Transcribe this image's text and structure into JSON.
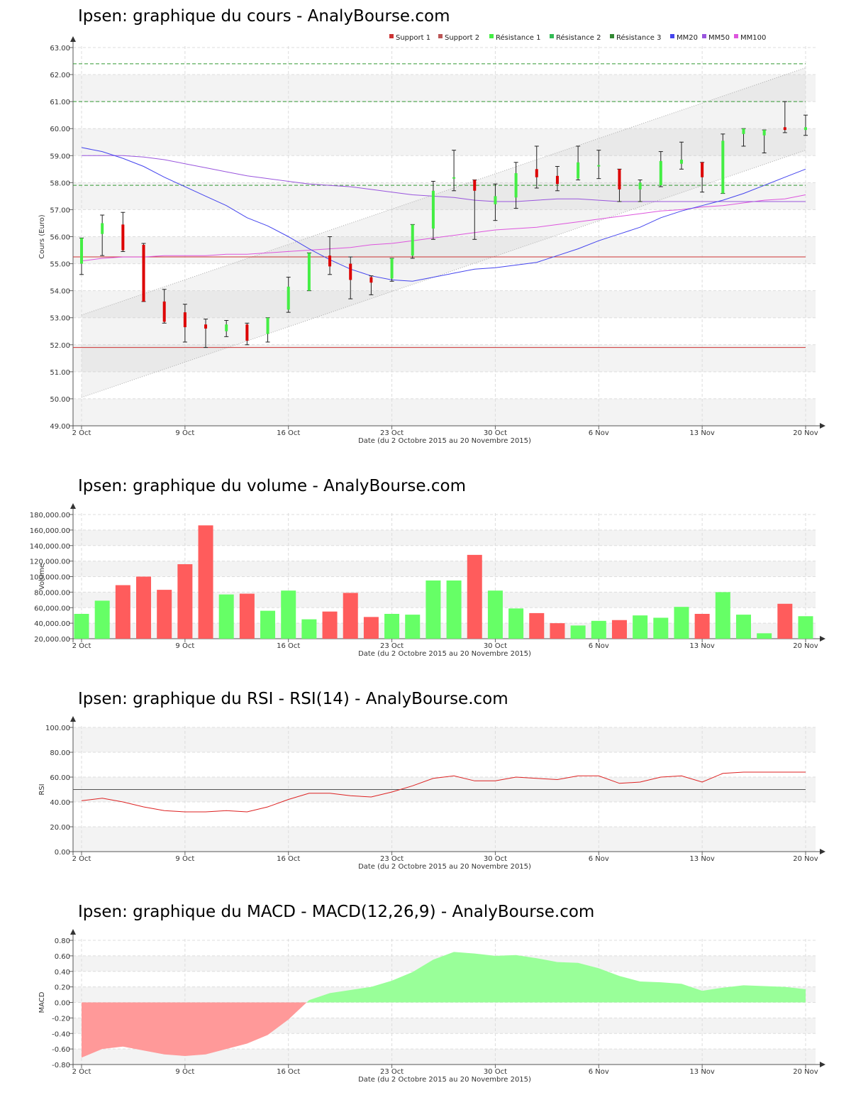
{
  "price": {
    "title": "Ipsen: graphique du cours - AnalyBourse.com",
    "ylabel": "Cours (Euro)",
    "xlabel": "Date (du 2 Octobre 2015 au 20 Novembre 2015)"
  },
  "volume": {
    "title": "Ipsen: graphique du volume - AnalyBourse.com",
    "ylabel": "Volume",
    "xlabel": "Date (du 2 Octobre 2015 au 20 Novembre 2015)"
  },
  "rsi": {
    "title": "Ipsen: graphique du RSI - RSI(14) - AnalyBourse.com",
    "ylabel": "RSI",
    "xlabel": "Date (du 2 Octobre 2015 au 20 Novembre 2015)"
  },
  "macd": {
    "title": "Ipsen: graphique du MACD - MACD(12,26,9) - AnalyBourse.com",
    "ylabel": "MACD",
    "xlabel": "Date (du 2 Octobre 2015 au 20 Novembre 2015)"
  },
  "colors": {
    "up": "#44ee44",
    "down": "#dd0000",
    "vol_up": "#66ff66",
    "vol_down": "#ff5c5c",
    "macd_pos": "#99ff99",
    "macd_neg": "#ff9999",
    "support": "#cc3333",
    "resistance": "#339933",
    "mm20": "#4444ee",
    "mm50": "#9955dd",
    "mm100": "#dd55dd",
    "rsi": "#dd2222"
  },
  "chart_data": [
    {
      "id": "price",
      "type": "candlestick",
      "title": "Ipsen: graphique du cours - AnalyBourse.com",
      "ylabel": "Cours (Euro)",
      "xlabel": "Date (du 2 Octobre 2015 au 20 Novembre 2015)",
      "ylim": [
        49,
        63
      ],
      "yticks": [
        "49.00",
        "50.00",
        "51.00",
        "52.00",
        "53.00",
        "54.00",
        "55.00",
        "56.00",
        "57.00",
        "58.00",
        "59.00",
        "60.00",
        "61.00",
        "62.00",
        "63.00"
      ],
      "xticks": [
        {
          "label": "2 Oct",
          "i": 0
        },
        {
          "label": "9 Oct",
          "i": 5
        },
        {
          "label": "16 Oct",
          "i": 10
        },
        {
          "label": "23 Oct",
          "i": 15
        },
        {
          "label": "30 Oct",
          "i": 20
        },
        {
          "label": "6 Nov",
          "i": 25
        },
        {
          "label": "13 Nov",
          "i": 30
        },
        {
          "label": "20 Nov",
          "i": 35
        }
      ],
      "legend": [
        "Support 1",
        "Support 2",
        "Résistance 1",
        "Résistance 2",
        "Résistance 3",
        "MM20",
        "MM50",
        "MM100"
      ],
      "candles": [
        {
          "o": 55.0,
          "h": 55.95,
          "l": 54.6,
          "c": 55.95
        },
        {
          "o": 56.1,
          "h": 56.8,
          "l": 55.3,
          "c": 56.5
        },
        {
          "o": 56.45,
          "h": 56.9,
          "l": 55.45,
          "c": 55.5
        },
        {
          "o": 55.7,
          "h": 55.75,
          "l": 53.6,
          "c": 53.6
        },
        {
          "o": 53.6,
          "h": 54.05,
          "l": 52.8,
          "c": 52.85
        },
        {
          "o": 53.2,
          "h": 53.5,
          "l": 52.1,
          "c": 52.65
        },
        {
          "o": 52.75,
          "h": 52.95,
          "l": 51.9,
          "c": 52.6
        },
        {
          "o": 52.5,
          "h": 52.9,
          "l": 52.3,
          "c": 52.75
        },
        {
          "o": 52.75,
          "h": 52.8,
          "l": 52.0,
          "c": 52.15
        },
        {
          "o": 52.4,
          "h": 53.0,
          "l": 52.1,
          "c": 53.0
        },
        {
          "o": 53.3,
          "h": 54.5,
          "l": 53.2,
          "c": 54.15
        },
        {
          "o": 54.0,
          "h": 55.4,
          "l": 54.0,
          "c": 55.4
        },
        {
          "o": 55.3,
          "h": 56.0,
          "l": 54.6,
          "c": 54.9
        },
        {
          "o": 55.0,
          "h": 55.25,
          "l": 53.7,
          "c": 54.4
        },
        {
          "o": 54.5,
          "h": 54.55,
          "l": 53.85,
          "c": 54.3
        },
        {
          "o": 54.45,
          "h": 55.2,
          "l": 54.35,
          "c": 55.2
        },
        {
          "o": 55.3,
          "h": 56.45,
          "l": 55.2,
          "c": 56.45
        },
        {
          "o": 56.3,
          "h": 58.05,
          "l": 55.9,
          "c": 57.7
        },
        {
          "o": 58.2,
          "h": 59.2,
          "l": 57.7,
          "c": 58.2
        },
        {
          "o": 58.1,
          "h": 58.1,
          "l": 55.9,
          "c": 57.7
        },
        {
          "o": 57.2,
          "h": 57.95,
          "l": 56.6,
          "c": 57.5
        },
        {
          "o": 57.45,
          "h": 58.75,
          "l": 57.05,
          "c": 58.35
        },
        {
          "o": 58.5,
          "h": 59.35,
          "l": 57.8,
          "c": 58.2
        },
        {
          "o": 58.25,
          "h": 58.6,
          "l": 57.7,
          "c": 57.95
        },
        {
          "o": 58.15,
          "h": 59.35,
          "l": 58.1,
          "c": 58.75
        },
        {
          "o": 58.6,
          "h": 59.2,
          "l": 58.15,
          "c": 58.65
        },
        {
          "o": 58.5,
          "h": 58.5,
          "l": 57.3,
          "c": 57.75
        },
        {
          "o": 57.75,
          "h": 58.1,
          "l": 57.3,
          "c": 58.0
        },
        {
          "o": 57.9,
          "h": 59.15,
          "l": 57.85,
          "c": 58.8
        },
        {
          "o": 58.7,
          "h": 59.5,
          "l": 58.5,
          "c": 58.85
        },
        {
          "o": 58.75,
          "h": 58.75,
          "l": 57.65,
          "c": 58.2
        },
        {
          "o": 57.6,
          "h": 59.8,
          "l": 57.6,
          "c": 59.55
        },
        {
          "o": 59.8,
          "h": 60.0,
          "l": 59.35,
          "c": 60.0
        },
        {
          "o": 59.75,
          "h": 59.95,
          "l": 59.1,
          "c": 59.95
        },
        {
          "o": 60.05,
          "h": 61.0,
          "l": 59.85,
          "c": 59.95
        },
        {
          "o": 59.95,
          "h": 60.5,
          "l": 59.75,
          "c": 60.05
        }
      ],
      "support_lines": [
        55.25,
        51.9
      ],
      "resistance_lines": [
        57.9,
        61.0,
        62.4
      ],
      "channel_upper": [
        53.1,
        62.25
      ],
      "channel_lower": [
        50.05,
        59.2
      ],
      "mm20": [
        59.3,
        59.15,
        58.9,
        58.6,
        58.2,
        57.85,
        57.5,
        57.15,
        56.7,
        56.4,
        56.0,
        55.55,
        55.15,
        54.8,
        54.55,
        54.4,
        54.35,
        54.5,
        54.65,
        54.8,
        54.85,
        54.95,
        55.05,
        55.3,
        55.55,
        55.85,
        56.1,
        56.35,
        56.7,
        56.95,
        57.15,
        57.35,
        57.6,
        57.9,
        58.2,
        58.5
      ],
      "mm50": [
        59.0,
        59.0,
        59.0,
        58.95,
        58.85,
        58.7,
        58.55,
        58.4,
        58.25,
        58.15,
        58.05,
        57.95,
        57.9,
        57.85,
        57.75,
        57.65,
        57.55,
        57.5,
        57.45,
        57.35,
        57.3,
        57.3,
        57.35,
        57.4,
        57.4,
        57.35,
        57.3,
        57.3,
        57.3,
        57.3,
        57.3,
        57.3,
        57.3,
        57.3,
        57.3,
        57.3
      ],
      "mm100": [
        55.1,
        55.2,
        55.25,
        55.25,
        55.3,
        55.3,
        55.3,
        55.35,
        55.35,
        55.4,
        55.45,
        55.5,
        55.55,
        55.6,
        55.7,
        55.75,
        55.85,
        55.95,
        56.05,
        56.15,
        56.25,
        56.3,
        56.35,
        56.45,
        56.55,
        56.65,
        56.75,
        56.85,
        56.95,
        57.0,
        57.1,
        57.15,
        57.25,
        57.35,
        57.4,
        57.55
      ]
    },
    {
      "id": "volume",
      "type": "bar",
      "title": "Ipsen: graphique du volume - AnalyBourse.com",
      "ylabel": "Volume",
      "xlabel": "Date (du 2 Octobre 2015 au 20 Novembre 2015)",
      "ylim": [
        20000,
        180000
      ],
      "yticks": [
        "20,000.00",
        "40,000.00",
        "60,000.00",
        "80,000.00",
        "100,000.00",
        "120,000.00",
        "140,000.00",
        "160,000.00",
        "180,000.00"
      ],
      "xticks": [
        {
          "label": "2 Oct",
          "i": 0
        },
        {
          "label": "9 Oct",
          "i": 5
        },
        {
          "label": "16 Oct",
          "i": 10
        },
        {
          "label": "23 Oct",
          "i": 15
        },
        {
          "label": "30 Oct",
          "i": 20
        },
        {
          "label": "6 Nov",
          "i": 25
        },
        {
          "label": "13 Nov",
          "i": 30
        },
        {
          "label": "20 Nov",
          "i": 35
        }
      ],
      "values": [
        52000,
        69000,
        89000,
        100000,
        83000,
        116000,
        166000,
        77000,
        78000,
        56000,
        82000,
        45000,
        55000,
        79000,
        48000,
        52000,
        51000,
        95000,
        95000,
        128000,
        82000,
        59000,
        53000,
        40000,
        37000,
        43000,
        44000,
        50000,
        47000,
        61000,
        52000,
        80000,
        51000,
        27000,
        65000,
        49000
      ]
    },
    {
      "id": "rsi",
      "type": "line",
      "title": "Ipsen: graphique du RSI - RSI(14) - AnalyBourse.com",
      "ylabel": "RSI",
      "xlabel": "Date (du 2 Octobre 2015 au 20 Novembre 2015)",
      "ylim": [
        0,
        100
      ],
      "yticks": [
        "0.00",
        "20.00",
        "40.00",
        "60.00",
        "80.00",
        "100.00"
      ],
      "xticks": [
        {
          "label": "2 Oct",
          "i": 0
        },
        {
          "label": "9 Oct",
          "i": 5
        },
        {
          "label": "16 Oct",
          "i": 10
        },
        {
          "label": "23 Oct",
          "i": 15
        },
        {
          "label": "30 Oct",
          "i": 20
        },
        {
          "label": "6 Nov",
          "i": 25
        },
        {
          "label": "13 Nov",
          "i": 30
        },
        {
          "label": "20 Nov",
          "i": 35
        }
      ],
      "reference": 50,
      "values": [
        41,
        43,
        40,
        36,
        33,
        32,
        32,
        33,
        32,
        36,
        42,
        47,
        47,
        45,
        44,
        48,
        53,
        59,
        61,
        57,
        57,
        60,
        59,
        58,
        61,
        61,
        55,
        56,
        60,
        61,
        56,
        63,
        64,
        64,
        64,
        64
      ]
    },
    {
      "id": "macd",
      "type": "area",
      "title": "Ipsen: graphique du MACD - MACD(12,26,9) - AnalyBourse.com",
      "ylabel": "MACD",
      "xlabel": "Date (du 2 Octobre 2015 au 20 Novembre 2015)",
      "ylim": [
        -0.8,
        0.8
      ],
      "yticks": [
        "-0.80",
        "-0.60",
        "-0.40",
        "-0.20",
        "0.00",
        "0.20",
        "0.40",
        "0.60",
        "0.80"
      ],
      "xticks": [
        {
          "label": "2 Oct",
          "i": 0
        },
        {
          "label": "9 Oct",
          "i": 5
        },
        {
          "label": "16 Oct",
          "i": 10
        },
        {
          "label": "23 Oct",
          "i": 15
        },
        {
          "label": "30 Oct",
          "i": 20
        },
        {
          "label": "6 Nov",
          "i": 25
        },
        {
          "label": "13 Nov",
          "i": 30
        },
        {
          "label": "20 Nov",
          "i": 35
        }
      ],
      "values": [
        -0.71,
        -0.6,
        -0.57,
        -0.62,
        -0.67,
        -0.69,
        -0.67,
        -0.6,
        -0.53,
        -0.42,
        -0.22,
        0.03,
        0.12,
        0.16,
        0.2,
        0.28,
        0.39,
        0.55,
        0.65,
        0.63,
        0.6,
        0.61,
        0.57,
        0.52,
        0.51,
        0.44,
        0.34,
        0.27,
        0.26,
        0.24,
        0.15,
        0.19,
        0.22,
        0.21,
        0.2,
        0.17
      ]
    }
  ]
}
